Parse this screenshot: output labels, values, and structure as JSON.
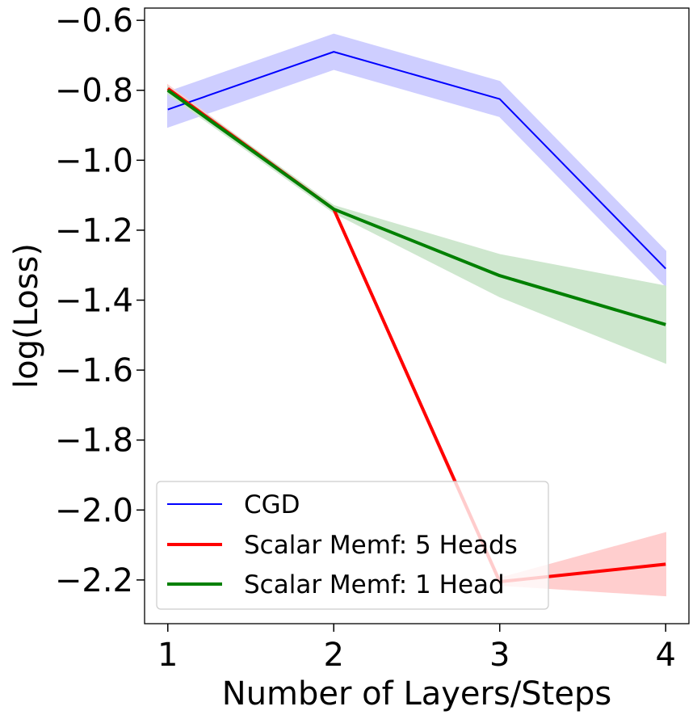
{
  "chart_data": {
    "type": "line",
    "title": "",
    "xlabel": "Number of Layers/Steps",
    "ylabel": "log(Loss)",
    "x": [
      1,
      2,
      3,
      4
    ],
    "xticks": [
      "1",
      "2",
      "3",
      "4"
    ],
    "yticks": [
      -0.6,
      -0.8,
      -1.0,
      -1.2,
      -1.4,
      -1.6,
      -1.8,
      -2.0,
      -2.2
    ],
    "ytick_labels": [
      "−0.6",
      "−0.8",
      "−1.0",
      "−1.2",
      "−1.4",
      "−1.6",
      "−1.8",
      "−2.0",
      "−2.2"
    ],
    "xlim": [
      0.86,
      4.14
    ],
    "ylim": [
      -2.325,
      -0.565
    ],
    "grid": false,
    "legend_position": "lower-left",
    "series": [
      {
        "name": "CGD",
        "color": "#0000ff",
        "values": [
          -0.855,
          -0.69,
          -0.825,
          -1.31
        ],
        "lower": [
          -0.905,
          -0.74,
          -0.875,
          -1.36
        ],
        "upper": [
          -0.805,
          -0.64,
          -0.775,
          -1.26
        ],
        "band_color": "#ccccff"
      },
      {
        "name": "Scalar Memf: 5 Heads",
        "color": "#ff0000",
        "values": [
          -0.795,
          -1.14,
          -2.205,
          -2.155
        ],
        "lower": [
          -0.805,
          -1.145,
          -2.215,
          -2.245
        ],
        "upper": [
          -0.785,
          -1.135,
          -2.195,
          -2.065
        ],
        "band_color": "#ffcccc"
      },
      {
        "name": "Scalar Memf: 1 Head",
        "color": "#008000",
        "values": [
          -0.8,
          -1.14,
          -1.33,
          -1.47
        ],
        "lower": [
          -0.81,
          -1.15,
          -1.39,
          -1.58
        ],
        "upper": [
          -0.79,
          -1.13,
          -1.27,
          -1.36
        ],
        "band_color": "#cce6cc"
      }
    ]
  }
}
